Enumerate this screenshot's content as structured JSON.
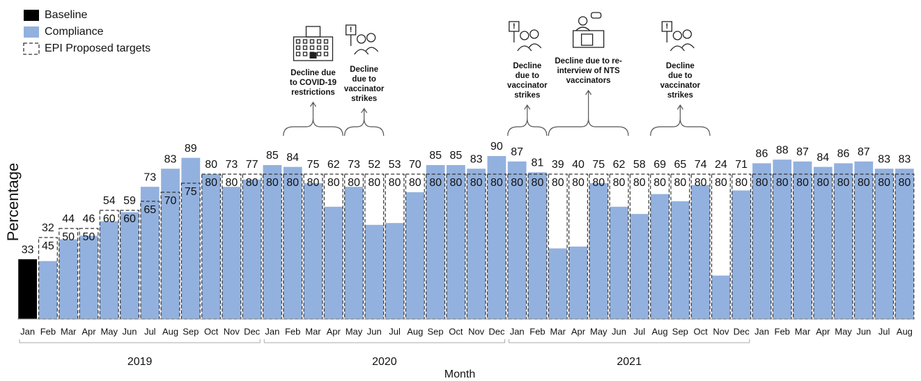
{
  "chart_data": {
    "type": "bar",
    "x_label": "Month",
    "y_label": "Percentage",
    "categories": [
      "Jan",
      "Feb",
      "Mar",
      "Apr",
      "May",
      "Jun",
      "Jul",
      "Aug",
      "Sep",
      "Oct",
      "Nov",
      "Dec",
      "Jan",
      "Feb",
      "Mar",
      "Apr",
      "May",
      "Jun",
      "Jul",
      "Aug",
      "Sep",
      "Oct",
      "Nov",
      "Dec",
      "Jan",
      "Feb",
      "Mar",
      "Apr",
      "May",
      "Jun",
      "Jul",
      "Aug",
      "Sep",
      "Oct",
      "Nov",
      "Dec",
      "Jan",
      "Feb",
      "Mar",
      "Apr",
      "May",
      "Jun",
      "Jul",
      "Aug"
    ],
    "years": [
      "2019",
      "2020",
      "2021"
    ],
    "ylim": [
      0,
      100
    ],
    "series": [
      {
        "name": "Baseline",
        "color": "#000000",
        "values": [
          33,
          null,
          null,
          null,
          null,
          null,
          null,
          null,
          null,
          null,
          null,
          null,
          null,
          null,
          null,
          null,
          null,
          null,
          null,
          null,
          null,
          null,
          null,
          null,
          null,
          null,
          null,
          null,
          null,
          null,
          null,
          null,
          null,
          null,
          null,
          null,
          null,
          null,
          null,
          null,
          null,
          null,
          null,
          null
        ]
      },
      {
        "name": "Compliance",
        "color": "#93b1de",
        "values": [
          null,
          32,
          44,
          46,
          54,
          59,
          73,
          83,
          89,
          80,
          73,
          77,
          85,
          84,
          75,
          62,
          73,
          52,
          53,
          70,
          85,
          85,
          83,
          90,
          87,
          81,
          39,
          40,
          75,
          62,
          58,
          69,
          65,
          74,
          24,
          71,
          86,
          88,
          87,
          84,
          86,
          87,
          83,
          83
        ]
      },
      {
        "name": "EPI Proposed targets",
        "color": "#333333",
        "values": [
          null,
          45,
          50,
          50,
          60,
          60,
          65,
          70,
          75,
          80,
          80,
          80,
          80,
          80,
          80,
          80,
          80,
          80,
          80,
          80,
          80,
          80,
          80,
          80,
          80,
          80,
          80,
          80,
          80,
          80,
          80,
          80,
          80,
          80,
          80,
          80,
          80,
          80,
          80,
          80,
          80,
          80,
          80,
          80
        ]
      }
    ],
    "annotations": [
      {
        "text": [
          "Decline due",
          "to COVID-19",
          "restrictions"
        ]
      },
      {
        "text": [
          "Decline",
          "due to",
          "vaccinator",
          "strikes"
        ]
      },
      {
        "text": [
          "Decline",
          "due to",
          "vaccinator",
          "strikes"
        ]
      },
      {
        "text": [
          "Decline due to re-",
          "interview of NTS",
          "vaccinators"
        ]
      },
      {
        "text": [
          "Decline",
          "due to",
          "vaccinator",
          "strikes"
        ]
      }
    ]
  }
}
